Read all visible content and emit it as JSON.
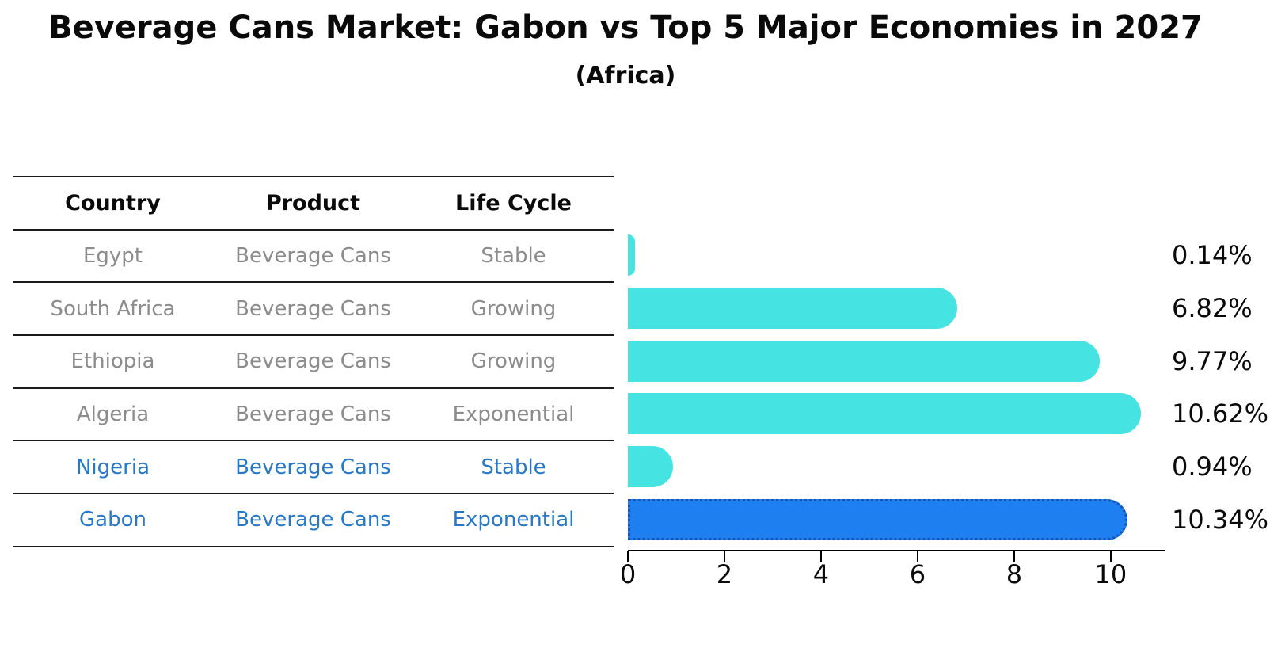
{
  "header": {
    "title": "Beverage Cans Market: Gabon vs Top 5 Major Economies in 2027",
    "subtitle": "(Africa)"
  },
  "table": {
    "headers": [
      "Country",
      "Product",
      "Life Cycle"
    ],
    "rows": [
      {
        "country": "Egypt",
        "product": "Beverage Cans",
        "life_cycle": "Stable",
        "highlight": false
      },
      {
        "country": "South Africa",
        "product": "Beverage Cans",
        "life_cycle": "Growing",
        "highlight": false
      },
      {
        "country": "Ethiopia",
        "product": "Beverage Cans",
        "life_cycle": "Growing",
        "highlight": false
      },
      {
        "country": "Algeria",
        "product": "Beverage Cans",
        "life_cycle": "Exponential",
        "highlight": false
      },
      {
        "country": "Nigeria",
        "product": "Beverage Cans",
        "life_cycle": "Stable",
        "highlight": true
      },
      {
        "country": "Gabon",
        "product": "Beverage Cans",
        "life_cycle": "Exponential",
        "highlight": true
      }
    ]
  },
  "chart_data": {
    "type": "bar",
    "orientation": "horizontal",
    "title": "Beverage Cans Market: Gabon vs Top 5 Major Economies in 2027 (Africa)",
    "categories": [
      "Egypt",
      "South Africa",
      "Ethiopia",
      "Algeria",
      "Nigeria",
      "Gabon"
    ],
    "values": [
      0.14,
      6.82,
      9.77,
      10.62,
      0.94,
      10.34
    ],
    "value_labels": [
      "0.14%",
      "6.82%",
      "9.77%",
      "10.62%",
      "0.94%",
      "10.34%"
    ],
    "x_ticks": [
      0,
      2,
      4,
      6,
      8,
      10
    ],
    "xlim": [
      0,
      11.1
    ],
    "xlabel": "",
    "ylabel": "",
    "grid": false,
    "legend": "none",
    "bar_color": "#46E3E3",
    "highlight_color": "#1E80F0",
    "highlight_edge_color": "#1655B4",
    "highlight_index": 5
  },
  "colors": {
    "background": "#ffffff",
    "table_line": "#1a1a1a",
    "row_text": "#8c8c8c",
    "highlight_text": "#2878c8",
    "axis": "#000000"
  }
}
